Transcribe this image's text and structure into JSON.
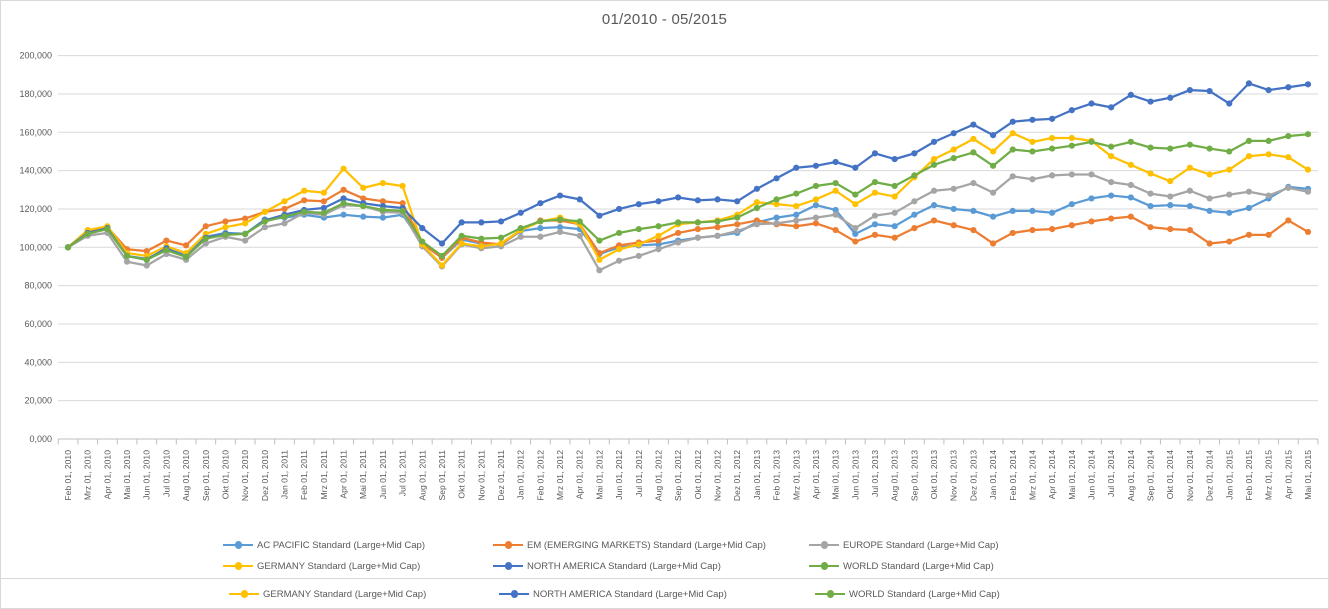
{
  "title": "01/2010 - 05/2015",
  "colors": {
    "ac_pacific": "#5B9BD5",
    "em": "#ED7D31",
    "europe": "#A5A5A5",
    "germany": "#FFC000",
    "north_america": "#4472C4",
    "world": "#70AD47",
    "gridline": "#d9d9d9",
    "axis_line": "#bfbfbf",
    "text": "#595959"
  },
  "chart_data": {
    "type": "line",
    "title": "01/2010 - 05/2015",
    "xlabel": "",
    "ylabel": "",
    "ylim": [
      0,
      200000
    ],
    "grid": true,
    "legend_position": "bottom",
    "y_tick_labels": [
      "0,000",
      "20,000",
      "40,000",
      "60,000",
      "80,000",
      "100,000",
      "120,000",
      "140,000",
      "160,000",
      "180,000",
      "200,000"
    ],
    "categories": [
      "Feb 01, 2010",
      "Mrz 01, 2010",
      "Apr 01, 2010",
      "Mai 01, 2010",
      "Jun 01, 2010",
      "Jul 01, 2010",
      "Aug 01, 2010",
      "Sep 01, 2010",
      "Okt 01, 2010",
      "Nov 01, 2010",
      "Dez 01, 2010",
      "Jan 01, 2011",
      "Feb 01, 2011",
      "Mrz 01, 2011",
      "Apr 01, 2011",
      "Mai 01, 2011",
      "Jun 01, 2011",
      "Jul 01, 2011",
      "Aug 01, 2011",
      "Sep 01, 2011",
      "Okt 01, 2011",
      "Nov 01, 2011",
      "Dez 01, 2011",
      "Jan 01, 2012",
      "Feb 01, 2012",
      "Mrz 01, 2012",
      "Apr 01, 2012",
      "Mai 01, 2012",
      "Jun 01, 2012",
      "Jul 01, 2012",
      "Aug 01, 2012",
      "Sep 01, 2012",
      "Okt 01, 2012",
      "Nov 01, 2012",
      "Dez 01, 2012",
      "Jan 01, 2013",
      "Feb 01, 2013",
      "Mrz 01, 2013",
      "Apr 01, 2013",
      "Mai 01, 2013",
      "Jun 01, 2013",
      "Jul 01, 2013",
      "Aug 01, 2013",
      "Sep 01, 2013",
      "Okt 01, 2013",
      "Nov 01, 2013",
      "Dez 01, 2013",
      "Jan 01, 2014",
      "Feb 01, 2014",
      "Mrz 01, 2014",
      "Apr 01, 2014",
      "Mai 01, 2014",
      "Jun 01, 2014",
      "Jul 01, 2014",
      "Aug 01, 2014",
      "Sep 01, 2014",
      "Okt 01, 2014",
      "Nov 01, 2014",
      "Dez 01, 2014",
      "Jan 01, 2015",
      "Feb 01, 2015",
      "Mrz 01, 2015",
      "Apr 01, 2015",
      "Mai 01, 2015"
    ],
    "series": [
      {
        "name": "AC PACIFIC Standard (Large+Mid Cap)",
        "color_key": "ac_pacific",
        "values": [
          100000,
          107500,
          109500,
          95500,
          94000,
          99000,
          96000,
          105500,
          107500,
          107000,
          114500,
          115500,
          117000,
          115500,
          117000,
          116000,
          115500,
          117000,
          102000,
          94500,
          104000,
          102000,
          101500,
          108500,
          110000,
          110500,
          109500,
          96500,
          100000,
          101000,
          101500,
          103500,
          105000,
          106000,
          107500,
          113000,
          115500,
          117000,
          122000,
          119500,
          107000,
          112000,
          111000,
          117000,
          122000,
          120000,
          119000,
          116000,
          119000,
          119000,
          118000,
          122500,
          125500,
          127000,
          126000,
          121500,
          122000,
          121500,
          119000,
          118000,
          120500,
          125500,
          131500,
          130500
        ]
      },
      {
        "name": "EM (EMERGING MARKETS) Standard (Large+Mid Cap)",
        "color_key": "em",
        "values": [
          100000,
          108500,
          110500,
          99000,
          98000,
          103500,
          101000,
          111000,
          113500,
          115000,
          118500,
          120000,
          124500,
          124000,
          130000,
          125500,
          124000,
          123000,
          102000,
          94500,
          105000,
          102500,
          101500,
          109000,
          114000,
          114000,
          112000,
          97000,
          101000,
          102500,
          103500,
          107500,
          109500,
          110500,
          112000,
          114000,
          112000,
          111000,
          112500,
          109000,
          103000,
          106500,
          105000,
          110000,
          114000,
          111500,
          109000,
          102000,
          107500,
          109000,
          109500,
          111500,
          113500,
          115000,
          116000,
          110500,
          109500,
          109000,
          102000,
          103000,
          106500,
          106500,
          114000,
          108000
        ]
      },
      {
        "name": "EUROPE Standard (Large+Mid Cap)",
        "color_key": "europe",
        "values": [
          100000,
          106000,
          107500,
          92500,
          90500,
          96500,
          93500,
          102000,
          105500,
          103500,
          110500,
          112500,
          118000,
          117000,
          122000,
          121500,
          118500,
          118000,
          100500,
          90000,
          101500,
          99500,
          100500,
          105500,
          105500,
          108000,
          106000,
          88000,
          93000,
          95500,
          99000,
          102500,
          105000,
          106000,
          108500,
          112000,
          112500,
          114000,
          115500,
          117000,
          110000,
          116500,
          118000,
          124000,
          129500,
          130500,
          133500,
          128500,
          137000,
          135500,
          137500,
          138000,
          138000,
          134000,
          132500,
          128000,
          126500,
          129500,
          125500,
          127500,
          129000,
          127000,
          131000,
          129000
        ]
      },
      {
        "name": "GERMANY Standard (Large+Mid Cap)",
        "color_key": "germany",
        "values": [
          100000,
          109000,
          111000,
          97000,
          95500,
          100500,
          97000,
          107000,
          110500,
          112500,
          118500,
          124000,
          129500,
          128500,
          141000,
          131000,
          133500,
          132000,
          101500,
          90500,
          102000,
          100500,
          102000,
          109000,
          113500,
          115500,
          112000,
          93500,
          99000,
          101500,
          106000,
          112000,
          113000,
          114000,
          117000,
          123500,
          122500,
          121500,
          125000,
          129500,
          122500,
          128500,
          126500,
          136500,
          146000,
          151000,
          156500,
          150000,
          159500,
          155000,
          157000,
          157000,
          155500,
          147500,
          143000,
          138500,
          134500,
          141500,
          138000,
          140500,
          147500,
          148500,
          147000,
          140500
        ]
      },
      {
        "name": "NORTH AMERICA Standard (Large+Mid Cap)",
        "color_key": "north_america",
        "values": [
          100000,
          107500,
          110000,
          95500,
          93500,
          99500,
          95000,
          105000,
          107000,
          107000,
          114000,
          117000,
          119500,
          120500,
          125500,
          123000,
          121500,
          120500,
          110000,
          102000,
          113000,
          113000,
          113500,
          118000,
          123000,
          127000,
          125000,
          116500,
          120000,
          122500,
          124000,
          126000,
          124500,
          125000,
          124000,
          130500,
          136000,
          141500,
          142500,
          144500,
          141500,
          149000,
          146000,
          149000,
          155000,
          159500,
          164000,
          158500,
          165500,
          166500,
          167000,
          171500,
          175000,
          173000,
          179500,
          176000,
          178000,
          182000,
          181500,
          175000,
          185500,
          182000,
          183500,
          185000
        ]
      },
      {
        "name": "WORLD Standard (Large+Mid Cap)",
        "color_key": "world",
        "values": [
          100000,
          107000,
          109500,
          95500,
          93500,
          98500,
          95000,
          104500,
          106500,
          107000,
          113500,
          116000,
          118500,
          118000,
          123000,
          121500,
          119500,
          119000,
          103000,
          95500,
          106000,
          104500,
          105000,
          110000,
          113500,
          114500,
          113500,
          103500,
          107500,
          109500,
          111000,
          113000,
          113000,
          113500,
          115500,
          120500,
          125000,
          128000,
          132000,
          133500,
          127500,
          134000,
          132000,
          137500,
          143000,
          146500,
          149500,
          142500,
          151000,
          150000,
          151500,
          153000,
          155000,
          152500,
          155000,
          152000,
          151500,
          153500,
          151500,
          150000,
          155500,
          155500,
          158000,
          159000
        ]
      }
    ]
  },
  "legend": {
    "row1": [
      0,
      1,
      2
    ],
    "row2": [
      3,
      4,
      5
    ],
    "extra_row": [
      3,
      4,
      5
    ]
  }
}
